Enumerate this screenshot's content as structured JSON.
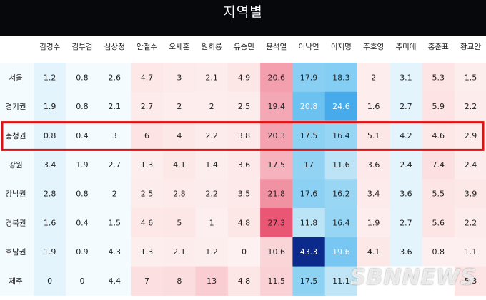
{
  "title": "지역별",
  "chart_data": {
    "type": "heatmap",
    "title": "지역별",
    "columns": [
      "김경수",
      "김부겸",
      "심상정",
      "안철수",
      "오세훈",
      "원희룡",
      "유승민",
      "윤석열",
      "이낙연",
      "이재명",
      "주호영",
      "추미애",
      "홍준표",
      "황교안"
    ],
    "rows": [
      "서울",
      "경기권",
      "충청권",
      "강원",
      "강남권",
      "경북권",
      "호남권",
      "제주"
    ],
    "values": [
      [
        1.2,
        0.8,
        2.6,
        4.7,
        3,
        2.1,
        4.9,
        20.6,
        17.9,
        18.3,
        2,
        3.1,
        5.3,
        1.5
      ],
      [
        1.9,
        0.8,
        2.1,
        2.7,
        2,
        2,
        2.5,
        19.4,
        20.8,
        24.6,
        1.6,
        2.7,
        5.9,
        2.2
      ],
      [
        0.8,
        0.4,
        3,
        6,
        4,
        2.2,
        3.8,
        20.3,
        17.5,
        16.4,
        5.1,
        4.2,
        4.6,
        2.9
      ],
      [
        3.4,
        1.9,
        2.7,
        1.3,
        4.1,
        1.4,
        3.6,
        17.5,
        17,
        11.6,
        3.6,
        2.4,
        7.4,
        2.4
      ],
      [
        2.8,
        0.8,
        2,
        2.5,
        2.8,
        2.2,
        3.5,
        21.8,
        17.6,
        16.2,
        3.4,
        3.6,
        5.5,
        3.9
      ],
      [
        1.6,
        0.4,
        1.5,
        4.6,
        5,
        1,
        4.8,
        27.3,
        11.8,
        16.4,
        1.9,
        2.7,
        5.6,
        2.2
      ],
      [
        1.9,
        0.9,
        4.3,
        1.3,
        2.1,
        1.2,
        0,
        10.6,
        43.3,
        19.6,
        4.1,
        3.6,
        0.8,
        1.1
      ],
      [
        0,
        0,
        4.4,
        7,
        8,
        13,
        4.8,
        11.5,
        17.5,
        11.1,
        null,
        null,
        null,
        5.3
      ]
    ],
    "highlighted_row": "충청권",
    "highlight_color": "#e01010",
    "party_groups": {
      "blue": [
        "김경수",
        "이낙연",
        "이재명",
        "추미애"
      ],
      "red": [
        "안철수",
        "오세훈",
        "원희룡",
        "유승민",
        "윤석열",
        "주호영",
        "홍준표",
        "황교안"
      ],
      "neutral": [
        "김부겸",
        "심상정"
      ]
    },
    "colors": {
      "background": "#06080c",
      "cell_base": "#f4fbff",
      "blue_max": "#0a2488",
      "red_max": "#e8506e"
    }
  },
  "watermark": "SBNNEWS"
}
